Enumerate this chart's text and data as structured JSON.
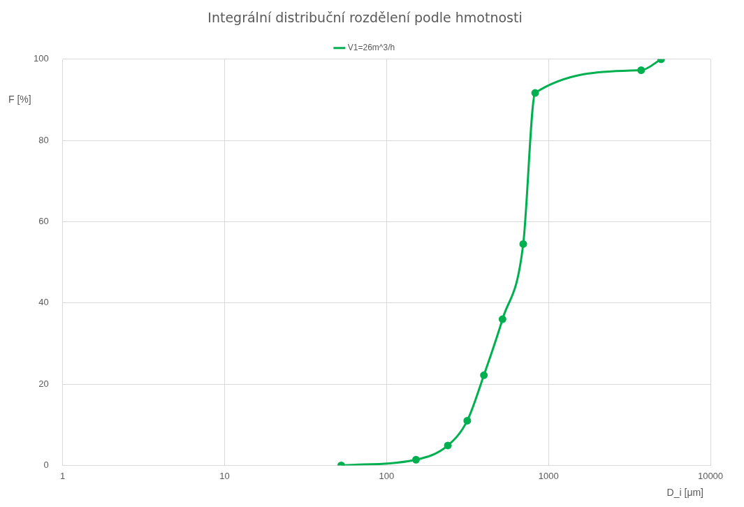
{
  "chart_data": {
    "type": "line",
    "title": "Integrální distribuční rozdělení podle hmotnosti",
    "xlabel": "D_i [μm]",
    "ylabel": "F [%]",
    "x": [
      52.5,
      152,
      239,
      315,
      399,
      520,
      698,
      827,
      3733,
      4958
    ],
    "series": [
      {
        "name": "V1=26m^3/h",
        "color": "#00b050",
        "values": [
          0,
          1.4,
          4.9,
          11,
          22.2,
          36,
          54.5,
          91.7,
          97.3,
          100
        ]
      }
    ],
    "log": "x",
    "xlim": [
      1,
      10000
    ],
    "xticks": [
      1,
      10,
      100,
      1000,
      10000
    ],
    "ylim": [
      0,
      100
    ],
    "yticks": [
      0,
      20,
      40,
      60,
      80,
      100
    ],
    "grid": true,
    "legend": "top",
    "marker": "circle",
    "line_style": "solid"
  }
}
